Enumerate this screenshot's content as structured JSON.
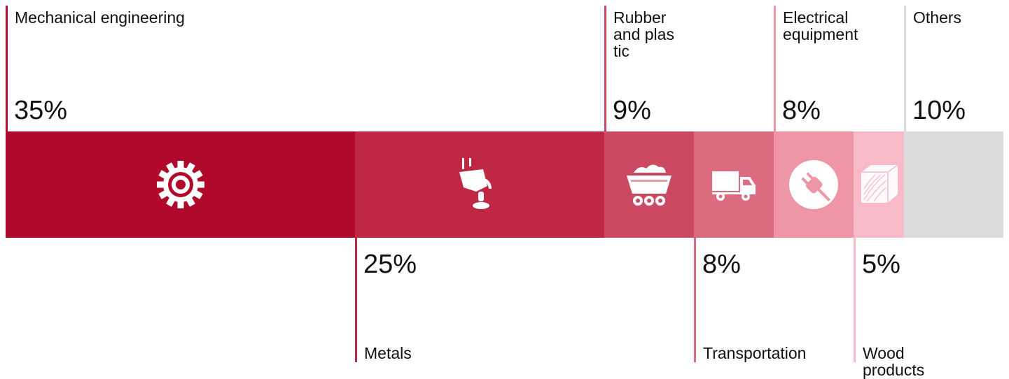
{
  "chart_data": {
    "type": "bar",
    "categories": [
      "Mechanical engineering",
      "Metals",
      "Rubber and plas tic",
      "Transportation",
      "Electrical equipment",
      "Wood products",
      "Others"
    ],
    "values": [
      35,
      25,
      9,
      8,
      8,
      5,
      10
    ],
    "value_labels": [
      "35%",
      "25%",
      "9%",
      "8%",
      "8%",
      "5%",
      "10%"
    ],
    "label_position": [
      "top",
      "bottom",
      "top",
      "bottom",
      "top",
      "bottom",
      "top"
    ],
    "colors": [
      "#b0092b",
      "#c02745",
      "#cc4a61",
      "#dc6b80",
      "#ee95a6",
      "#f8bac7",
      "#dcdcdc"
    ],
    "icons": [
      "gear-icon",
      "ladle-icon",
      "mine-cart-icon",
      "truck-icon",
      "plug-icon",
      "wood-block-icon",
      ""
    ]
  }
}
